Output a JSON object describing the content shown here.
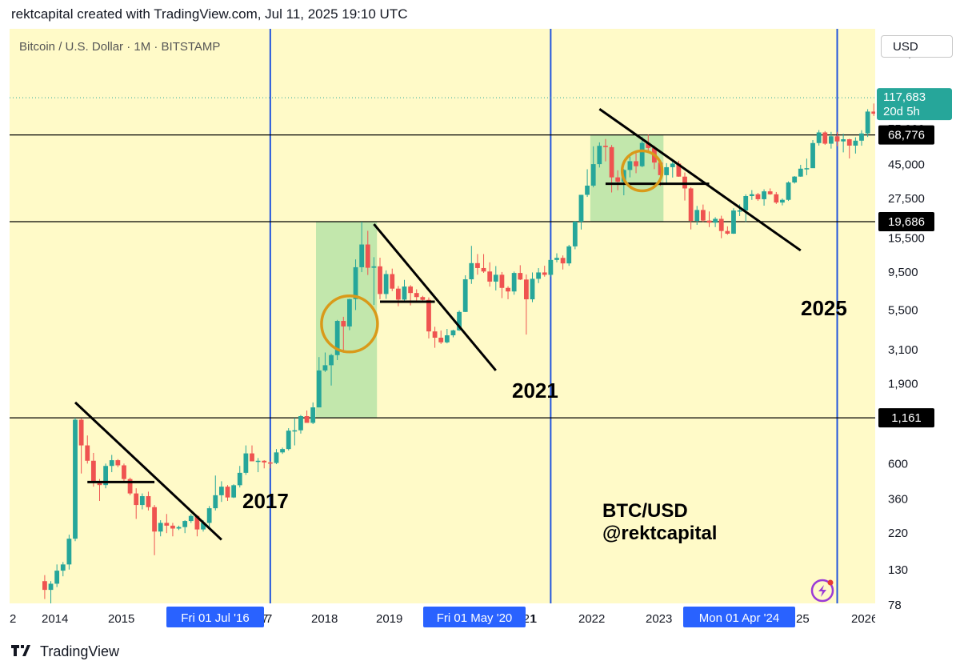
{
  "header": {
    "text": "rektcapital created with TradingView.com, Jul 11, 2025 19:10 UTC",
    "symbol_line": "Bitcoin / U.S. Dollar · 1M · BITSTAMP",
    "unit": "USD"
  },
  "footer": {
    "brand": "TradingView"
  },
  "colors": {
    "background": "#fffac8",
    "up": "#26a69a",
    "down": "#ef5350",
    "halving_line": "#2255dd",
    "highlight": "#b7e3a7",
    "circle": "#d99a1a",
    "label_bg": "#000000",
    "date_label_bg": "#2962ff"
  },
  "chart_data": {
    "type": "candlestick",
    "title": "Bitcoin / U.S. Dollar · 1M · BITSTAMP",
    "scale": "log",
    "ylim": [
      78,
      225000
    ],
    "y_ticks": [
      "225,000",
      "75,000",
      "45,000",
      "27,500",
      "15,500",
      "9,500",
      "5,500",
      "3,100",
      "1,900",
      "600",
      "360",
      "220",
      "130",
      "78"
    ],
    "x_ticks": [
      "2014",
      "2015",
      "2017",
      "2018",
      "2019",
      "2021",
      "2022",
      "2023",
      "2026"
    ],
    "x_tick_partials": [
      "2",
      "7",
      "1",
      "25"
    ],
    "last_price": {
      "value": "117,683",
      "countdown": "20d 5h",
      "date": "2025-07"
    },
    "horizontal_levels": [
      {
        "value": 68776,
        "label": "68,776"
      },
      {
        "value": 19686,
        "label": "19,686"
      },
      {
        "value": 1161,
        "label": "1,161"
      }
    ],
    "halving_lines": [
      {
        "date": "2016-07",
        "label": "Fri 01 Jul '16"
      },
      {
        "date": "2020-05",
        "label": "Fri 01 May '20"
      },
      {
        "date": "2024-04",
        "label": "Mon 01 Apr '24"
      }
    ],
    "cycle_labels": [
      "2017",
      "2021",
      "2025"
    ],
    "watermark": [
      "BTC/USD",
      "@rektcapital"
    ],
    "highlight_zones": [
      {
        "from": "2017-03",
        "to": "2017-12",
        "low": 1161,
        "high": 19686
      },
      {
        "from": "2020-12",
        "to": "2021-11",
        "low": 19686,
        "high": 68776
      },
      {
        "from": "2024-11",
        "to": "2025-07",
        "low": 68776,
        "high": 205000
      }
    ],
    "circles": [
      {
        "date": "2017-08",
        "price": 4500
      },
      {
        "date": "2021-08",
        "price": 41000
      },
      {
        "date": "2025-05",
        "price": 100000
      }
    ],
    "trend_lines": [
      {
        "from": [
          "2013-11",
          1450
        ],
        "to": [
          "2015-11",
          200
        ]
      },
      {
        "from": [
          "2017-12",
          19000
        ],
        "to": [
          "2019-08",
          2300
        ]
      },
      {
        "from": [
          "2021-01",
          100000
        ],
        "to": [
          "2023-10",
          13000
        ]
      }
    ],
    "range_lines": [
      {
        "from": "2014-01",
        "to": "2014-12",
        "value": 460
      },
      {
        "from": "2018-01",
        "to": "2018-10",
        "value": 6200
      },
      {
        "from": "2021-02",
        "to": "2022-07",
        "value": 34000
      }
    ],
    "candles_monthly": {
      "start": "2013-06",
      "ohlc": [
        [
          110,
          120,
          85,
          97
        ],
        [
          97,
          110,
          65,
          106
        ],
        [
          106,
          140,
          101,
          128
        ],
        [
          128,
          145,
          118,
          140
        ],
        [
          140,
          215,
          130,
          203
        ],
        [
          203,
          1161,
          196,
          1130
        ],
        [
          1130,
          1150,
          520,
          780
        ],
        [
          780,
          900,
          600,
          625
        ],
        [
          625,
          700,
          430,
          460
        ],
        [
          460,
          480,
          350,
          440
        ],
        [
          440,
          600,
          420,
          580
        ],
        [
          580,
          680,
          530,
          630
        ],
        [
          630,
          640,
          570,
          585
        ],
        [
          585,
          600,
          460,
          480
        ],
        [
          480,
          490,
          380,
          390
        ],
        [
          390,
          420,
          270,
          330
        ],
        [
          330,
          390,
          310,
          375
        ],
        [
          375,
          400,
          305,
          320
        ],
        [
          320,
          330,
          160,
          225
        ],
        [
          225,
          265,
          210,
          255
        ],
        [
          255,
          290,
          220,
          245
        ],
        [
          245,
          255,
          210,
          235
        ],
        [
          235,
          245,
          230,
          240
        ],
        [
          240,
          265,
          220,
          262
        ],
        [
          262,
          290,
          255,
          282
        ],
        [
          282,
          285,
          210,
          232
        ],
        [
          232,
          265,
          225,
          255
        ],
        [
          255,
          325,
          240,
          315
        ],
        [
          315,
          505,
          305,
          380
        ],
        [
          380,
          465,
          345,
          430
        ],
        [
          430,
          440,
          350,
          368
        ],
        [
          368,
          445,
          365,
          439
        ],
        [
          439,
          580,
          425,
          525
        ],
        [
          525,
          780,
          510,
          695
        ],
        [
          695,
          780,
          620,
          620
        ],
        [
          620,
          650,
          530,
          625
        ],
        [
          625,
          630,
          560,
          610
        ],
        [
          610,
          620,
          560,
          605
        ],
        [
          605,
          740,
          595,
          705
        ],
        [
          705,
          755,
          690,
          740
        ],
        [
          740,
          1000,
          725,
          965
        ],
        [
          965,
          1160,
          780,
          970
        ],
        [
          970,
          1210,
          925,
          1190
        ],
        [
          1190,
          1290,
          1110,
          1080
        ],
        [
          1080,
          1450,
          1060,
          1350
        ],
        [
          1350,
          2790,
          1350,
          2300
        ],
        [
          2300,
          2980,
          2250,
          2480
        ],
        [
          2480,
          2920,
          1850,
          2870
        ],
        [
          2870,
          4770,
          2670,
          4700
        ],
        [
          4700,
          4990,
          2970,
          4340
        ],
        [
          4340,
          6470,
          4110,
          6440
        ],
        [
          6440,
          11420,
          5500,
          10200
        ],
        [
          10200,
          19660,
          9500,
          14160
        ],
        [
          14160,
          17250,
          9120,
          10120
        ],
        [
          10120,
          11790,
          5920,
          10330
        ],
        [
          10330,
          11700,
          6430,
          6930
        ],
        [
          6930,
          9750,
          6460,
          9240
        ],
        [
          9240,
          10000,
          7230,
          7490
        ],
        [
          7490,
          7780,
          5810,
          6390
        ],
        [
          6390,
          8500,
          6100,
          7720
        ],
        [
          7720,
          7880,
          5880,
          7030
        ],
        [
          7030,
          7420,
          6160,
          6630
        ],
        [
          6630,
          6750,
          6200,
          6370
        ],
        [
          6370,
          6600,
          3650,
          4040
        ],
        [
          4040,
          4320,
          3190,
          3690
        ],
        [
          3690,
          4090,
          3370,
          3450
        ],
        [
          3450,
          4190,
          3400,
          3820
        ],
        [
          3820,
          4140,
          3710,
          4100
        ],
        [
          4100,
          5470,
          4070,
          5350
        ],
        [
          5350,
          9080,
          5340,
          8570
        ],
        [
          8570,
          13880,
          8020,
          10820
        ],
        [
          10820,
          12340,
          9160,
          10080
        ],
        [
          10080,
          12330,
          9400,
          9590
        ],
        [
          9590,
          10950,
          7710,
          8290
        ],
        [
          8290,
          10370,
          7300,
          9150
        ],
        [
          9150,
          9520,
          6530,
          7570
        ],
        [
          7570,
          7750,
          6430,
          7190
        ],
        [
          7190,
          9580,
          6860,
          9390
        ],
        [
          9390,
          10500,
          8470,
          8540
        ],
        [
          8540,
          9190,
          3860,
          6420
        ],
        [
          6420,
          9460,
          6160,
          8630
        ],
        [
          8630,
          10070,
          8110,
          9460
        ],
        [
          9460,
          10420,
          8900,
          9140
        ],
        [
          9140,
          11440,
          8910,
          11330
        ],
        [
          11330,
          12470,
          10950,
          11670
        ],
        [
          11670,
          12090,
          9870,
          10780
        ],
        [
          10780,
          14090,
          10410,
          13780
        ],
        [
          13780,
          19860,
          13220,
          19700
        ],
        [
          19700,
          29000,
          17570,
          28990
        ],
        [
          28990,
          41950,
          28130,
          33110
        ],
        [
          33110,
          58350,
          32300,
          45150
        ],
        [
          45150,
          61800,
          43000,
          58800
        ],
        [
          58800,
          64900,
          47000,
          57700
        ],
        [
          57700,
          59500,
          30000,
          37300
        ],
        [
          37300,
          41300,
          31000,
          35000
        ],
        [
          35000,
          42000,
          28800,
          41500
        ],
        [
          41500,
          50500,
          37300,
          47100
        ],
        [
          47100,
          52900,
          39600,
          43800
        ],
        [
          43800,
          67000,
          43200,
          61300
        ],
        [
          61300,
          69000,
          53200,
          57000
        ],
        [
          57000,
          59000,
          42000,
          46200
        ],
        [
          46200,
          47900,
          33000,
          38500
        ],
        [
          38500,
          45800,
          34300,
          43200
        ],
        [
          43200,
          48200,
          37200,
          45500
        ],
        [
          45500,
          47400,
          37600,
          37700
        ],
        [
          37700,
          40000,
          26700,
          31800
        ],
        [
          31800,
          32400,
          17600,
          19900
        ],
        [
          19900,
          24700,
          18800,
          23300
        ],
        [
          23300,
          25200,
          19600,
          20000
        ],
        [
          20000,
          22800,
          18200,
          19400
        ],
        [
          19400,
          21000,
          18200,
          20500
        ],
        [
          20500,
          21450,
          15500,
          17200
        ],
        [
          17200,
          18400,
          16300,
          16550
        ],
        [
          16550,
          23900,
          16500,
          23130
        ],
        [
          23130,
          25250,
          21350,
          23150
        ],
        [
          23150,
          29200,
          19600,
          28480
        ],
        [
          28480,
          31050,
          26950,
          29240
        ],
        [
          29240,
          29800,
          26600,
          27220
        ],
        [
          27220,
          31400,
          24800,
          30480
        ],
        [
          30480,
          31800,
          29000,
          29230
        ],
        [
          29230,
          30200,
          25400,
          25940
        ],
        [
          25940,
          27500,
          24900,
          26970
        ],
        [
          26970,
          35200,
          26550,
          34650
        ],
        [
          34650,
          38000,
          34100,
          37720
        ],
        [
          37720,
          44700,
          37600,
          42280
        ],
        [
          42280,
          48900,
          38500,
          42580
        ],
        [
          42580,
          63900,
          42800,
          61180
        ],
        [
          61180,
          73800,
          59000,
          71330
        ],
        [
          71330,
          72700,
          59600,
          60640
        ],
        [
          60640,
          71950,
          56500,
          67490
        ],
        [
          67490,
          71950,
          58400,
          62680
        ],
        [
          62680,
          70000,
          53500,
          64630
        ],
        [
          64630,
          65100,
          49000,
          58970
        ],
        [
          58970,
          66500,
          52600,
          63330
        ],
        [
          63330,
          73600,
          58900,
          70290
        ],
        [
          70290,
          99800,
          66800,
          96400
        ],
        [
          96400,
          108300,
          90500,
          93430
        ],
        [
          93430,
          109500,
          89200,
          102400
        ],
        [
          102400,
          106500,
          78200,
          84400
        ],
        [
          84400,
          95000,
          76600,
          82550
        ],
        [
          82550,
          97900,
          74400,
          94200
        ],
        [
          94200,
          111900,
          93300,
          104600
        ],
        [
          104600,
          110600,
          98200,
          107100
        ],
        [
          107100,
          118800,
          105100,
          117683
        ]
      ]
    }
  }
}
